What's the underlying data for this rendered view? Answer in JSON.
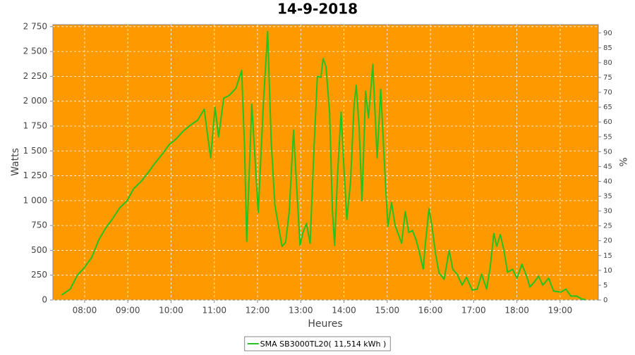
{
  "chart_data": {
    "type": "line",
    "title": "14-9-2018",
    "x_label": "Heures",
    "y_label": "Watts",
    "y2_label": "%",
    "background": "#ff9900",
    "grid": true,
    "xlim": [
      "07:16",
      "19:53"
    ],
    "xticks": [
      "08:00",
      "09:00",
      "10:00",
      "11:00",
      "12:00",
      "13:00",
      "14:00",
      "15:00",
      "16:00",
      "17:00",
      "18:00",
      "19:00"
    ],
    "ylim": [
      0,
      2770
    ],
    "yticks": [
      0,
      250,
      500,
      750,
      {
        "value": 1000,
        "label": "1 000"
      },
      {
        "value": 1250,
        "label": "1 250"
      },
      {
        "value": 1500,
        "label": "1 500"
      },
      {
        "value": 1750,
        "label": "1 750"
      },
      {
        "value": 2000,
        "label": "2 000"
      },
      {
        "value": 2250,
        "label": "2 250"
      },
      {
        "value": 2500,
        "label": "2 500"
      },
      {
        "value": 2750,
        "label": "2 750"
      }
    ],
    "y2lim": [
      0,
      92.8
    ],
    "y2ticks": [
      0,
      5,
      10,
      15,
      20,
      25,
      30,
      35,
      40,
      45,
      50,
      55,
      60,
      65,
      70,
      75,
      80,
      85,
      90
    ],
    "x": [
      "07:28",
      "07:40",
      "07:50",
      "08:00",
      "08:10",
      "08:20",
      "08:29",
      "08:39",
      "08:49",
      "08:59",
      "09:08",
      "09:18",
      "09:28",
      "09:38",
      "09:48",
      "09:57",
      "10:07",
      "10:17",
      "10:27",
      "10:37",
      "10:46",
      "10:51",
      "10:55",
      "11:01",
      "11:06",
      "11:13",
      "11:21",
      "11:30",
      "11:38",
      "11:42",
      "11:45",
      "11:52",
      "12:01",
      "12:08",
      "12:14",
      "12:19",
      "12:24",
      "12:29",
      "12:34",
      "12:39",
      "12:44",
      "12:50",
      "12:54",
      "12:59",
      "13:03",
      "13:08",
      "13:13",
      "13:18",
      "13:23",
      "13:28",
      "13:31",
      "13:35",
      "13:40",
      "13:44",
      "13:47",
      "13:51",
      "13:56",
      "14:00",
      "14:04",
      "14:09",
      "14:14",
      "14:17",
      "14:21",
      "14:25",
      "14:30",
      "14:34",
      "14:40",
      "14:46",
      "14:51",
      "14:57",
      "15:01",
      "15:06",
      "15:11",
      "15:16",
      "15:20",
      "15:25",
      "15:30",
      "15:35",
      "15:40",
      "15:45",
      "15:50",
      "15:53",
      "15:58",
      "16:02",
      "16:07",
      "16:12",
      "16:19",
      "16:26",
      "16:31",
      "16:37",
      "16:44",
      "16:50",
      "16:58",
      "17:05",
      "17:11",
      "17:18",
      "17:23",
      "17:28",
      "17:32",
      "17:37",
      "17:42",
      "17:47",
      "17:54",
      "18:00",
      "18:07",
      "18:14",
      "18:18",
      "18:24",
      "18:30",
      "18:36",
      "18:44",
      "18:51",
      "19:01",
      "19:08",
      "19:15",
      "19:23",
      "19:30",
      "19:35"
    ],
    "series": [
      {
        "name": "SMA SB3000TL20( 11,514 kWh )",
        "color": "#22c422",
        "values": [
          50,
          110,
          250,
          330,
          430,
          610,
          720,
          820,
          930,
          1000,
          1120,
          1190,
          1280,
          1380,
          1470,
          1560,
          1620,
          1700,
          1760,
          1810,
          1920,
          1640,
          1430,
          1940,
          1640,
          2030,
          2060,
          2130,
          2310,
          1530,
          590,
          1970,
          880,
          1960,
          2700,
          1600,
          960,
          750,
          540,
          580,
          890,
          1710,
          1180,
          550,
          680,
          770,
          570,
          1460,
          2250,
          2240,
          2430,
          2350,
          1890,
          890,
          550,
          1250,
          1890,
          1320,
          810,
          1180,
          1960,
          2160,
          1740,
          1000,
          2100,
          1830,
          2370,
          1430,
          2120,
          1250,
          740,
          980,
          750,
          650,
          570,
          890,
          680,
          700,
          610,
          470,
          310,
          570,
          920,
          750,
          470,
          270,
          210,
          500,
          310,
          260,
          150,
          230,
          100,
          110,
          260,
          110,
          330,
          670,
          540,
          660,
          500,
          280,
          310,
          220,
          360,
          230,
          130,
          180,
          240,
          150,
          220,
          90,
          80,
          110,
          40,
          40,
          10,
          5
        ]
      }
    ]
  }
}
